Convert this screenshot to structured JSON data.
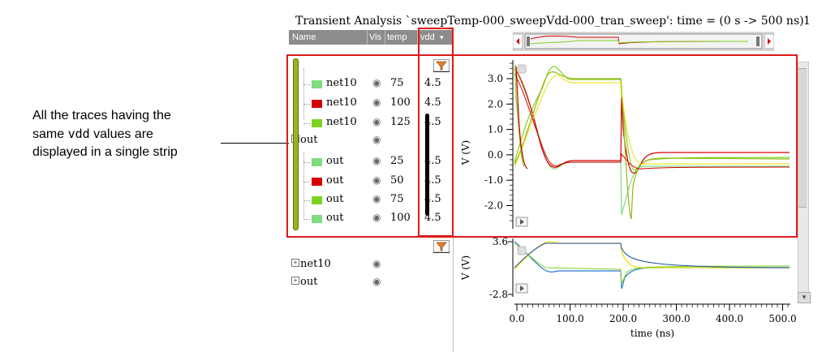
{
  "annotation": {
    "line1": "All the traces having the",
    "line2_pre": "same ",
    "line2_code": "vdd",
    "line2_post": " values are",
    "line3": "displayed in a single strip"
  },
  "window": {
    "title": "Transient Analysis `sweepTemp-000_sweepVdd-000_tran_sweep': time = (0 s -> 500 ns)",
    "title_suffix": "1"
  },
  "columns": {
    "name": "Name",
    "vis": "Vis",
    "temp": "temp",
    "vdd": "vdd"
  },
  "strip1_rows": [
    {
      "name": "net10",
      "temp": "75",
      "vdd": "4.5",
      "color": "#7fdc7f",
      "indent": true
    },
    {
      "name": "net10",
      "temp": "100",
      "vdd": "4.5",
      "color": "#d40000",
      "indent": true
    },
    {
      "name": "net10",
      "temp": "125",
      "vdd": "4.5",
      "color": "#7ed321",
      "indent": true
    },
    {
      "name": "out",
      "temp": "",
      "vdd": "",
      "color": "",
      "indent": false
    },
    {
      "name": "out",
      "temp": "25",
      "vdd": "4.5",
      "color": "#7fdc7f",
      "indent": true
    },
    {
      "name": "out",
      "temp": "50",
      "vdd": "4.5",
      "color": "#d40000",
      "indent": true
    },
    {
      "name": "out",
      "temp": "75",
      "vdd": "4.5",
      "color": "#7ed321",
      "indent": true
    },
    {
      "name": "out",
      "temp": "100",
      "vdd": "4.5",
      "color": "#7fdc7f",
      "indent": true
    }
  ],
  "strip2_rows": [
    {
      "name": "net10"
    },
    {
      "name": "out"
    }
  ],
  "strip1_axis": {
    "ylabel": "V (V)",
    "ticks": [
      "3.0",
      "2.0",
      "1.0",
      "0.0",
      "-1.0",
      "-2.0"
    ]
  },
  "strip2_axis": {
    "ylabel": "V (V)",
    "ticks": [
      "3.6",
      "-2.8"
    ]
  },
  "x_axis": {
    "label": "time (ns)",
    "ticks": [
      "0.0",
      "100.0",
      "200.0",
      "300.0",
      "400.0",
      "500.0"
    ]
  },
  "colors": {
    "highlight": "#e01818",
    "trace_red": "#d40000",
    "trace_green": "#7ed321",
    "trace_light_green": "#7fdc7f",
    "trace_yellow": "#e8e000",
    "trace_blue": "#2a7ad0"
  }
}
